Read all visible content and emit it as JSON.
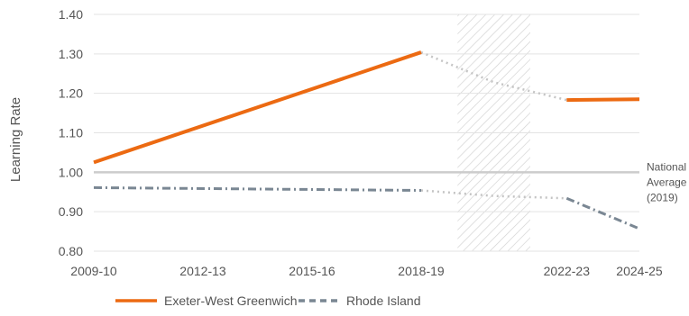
{
  "chart_data": {
    "type": "line",
    "ylabel": "Learning Rate",
    "ylim": [
      0.8,
      1.4
    ],
    "y_ticks": [
      "0.80",
      "0.90",
      "1.00",
      "1.10",
      "1.20",
      "1.30",
      "1.40"
    ],
    "x_ticks": [
      "2009-10",
      "2012-13",
      "2015-16",
      "2018-19",
      "2022-23",
      "2024-25"
    ],
    "x_tick_years": [
      2009,
      2012,
      2015,
      2018,
      2022,
      2024
    ],
    "xlim": [
      2009,
      2024
    ],
    "shaded_period": [
      2019,
      2021
    ],
    "grid": "horizontal",
    "reference_line": {
      "value": 1.0,
      "label_lines": [
        "National",
        "Average",
        "(2019)"
      ],
      "color": "#cccccc"
    },
    "series": [
      {
        "name": "Exeter-West Greenwich",
        "color": "#ec6a12",
        "style": "solid",
        "segments": [
          [
            [
              2009,
              1.025
            ],
            [
              2018,
              1.304
            ]
          ],
          [
            [
              2022,
              1.183
            ],
            [
              2024,
              1.185
            ]
          ]
        ],
        "gap_connector": [
          [
            2018,
            1.304
          ],
          [
            2020,
            1.228
          ],
          [
            2022,
            1.183
          ]
        ]
      },
      {
        "name": "Rhode Island",
        "color": "#7a8793",
        "style": "dashed",
        "segments": [
          [
            [
              2009,
              0.961
            ],
            [
              2018,
              0.954
            ]
          ],
          [
            [
              2022,
              0.934
            ],
            [
              2024,
              0.857
            ]
          ]
        ],
        "gap_connector": [
          [
            2018,
            0.954
          ],
          [
            2020,
            0.94
          ],
          [
            2022,
            0.934
          ]
        ]
      }
    ],
    "legend": {
      "placement": "bottom-left",
      "items": [
        "Exeter-West Greenwich",
        "Rhode Island"
      ]
    }
  }
}
